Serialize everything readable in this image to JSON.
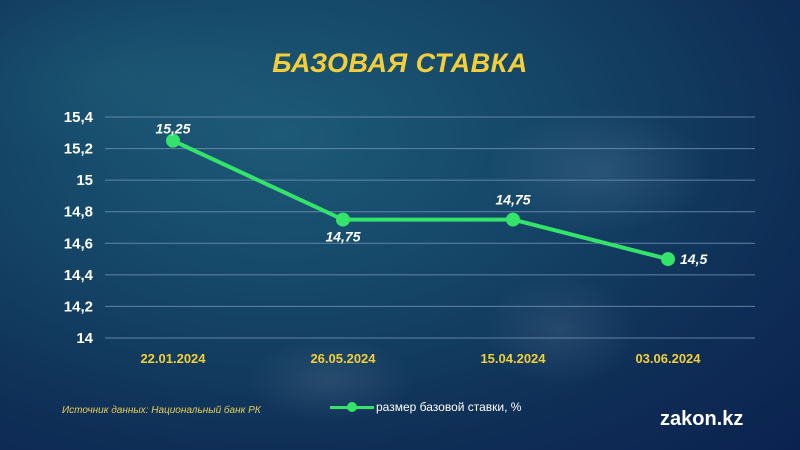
{
  "chart_data": {
    "type": "line",
    "title": "БАЗОВАЯ СТАВКА",
    "categories": [
      "22.01.2024",
      "26.05.2024",
      "15.04.2024",
      "03.06.2024"
    ],
    "y_ticks": [
      "14",
      "14,2",
      "14,4",
      "14,6",
      "14,8",
      "15",
      "15,2",
      "15,4"
    ],
    "series": [
      {
        "name": "размер базовой ставки, %",
        "values": [
          15.25,
          14.75,
          14.75,
          14.5
        ],
        "labels": [
          "15,25",
          "14,75",
          "14,75",
          "14,5"
        ]
      }
    ],
    "ylim": [
      14,
      15.4
    ],
    "grid": true,
    "legend": "bottom-center",
    "colors": {
      "line": "#34e36a",
      "title": "#f2cf3a",
      "category_labels": "#f2cf3a",
      "tick_labels": "#ffffff",
      "gridlines": "#6f8fb0"
    }
  },
  "source_text": "Источник данных: Национальный банк РК",
  "brand": "zakon.kz"
}
